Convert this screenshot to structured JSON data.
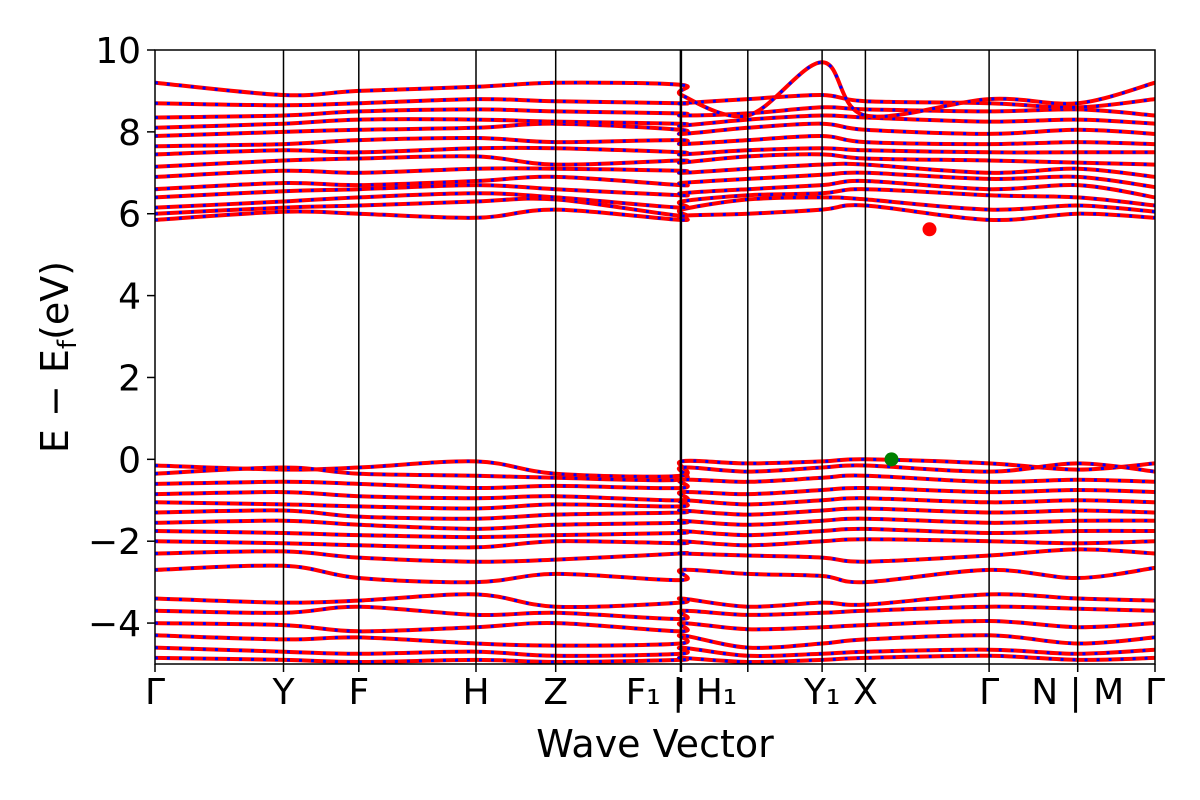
{
  "chart_data": {
    "type": "line",
    "title": "",
    "xlabel": "Wave Vector",
    "ylabel_main": "E − E",
    "ylabel_sub": "f",
    "ylabel_unit": "(eV)",
    "ylim": [
      -5,
      10
    ],
    "y_ticks": [
      {
        "value": -4,
        "label": "−4"
      },
      {
        "value": -2,
        "label": "−2"
      },
      {
        "value": 0,
        "label": "0"
      },
      {
        "value": 2,
        "label": "2"
      },
      {
        "value": 4,
        "label": "4"
      },
      {
        "value": 6,
        "label": "6"
      },
      {
        "value": 8,
        "label": "8"
      },
      {
        "value": 10,
        "label": "10"
      }
    ],
    "x_range": [
      0,
      1
    ],
    "kpoints": [
      {
        "x": 0.0,
        "label": "Γ"
      },
      {
        "x": 0.1285,
        "label": "Y"
      },
      {
        "x": 0.2038,
        "label": "F"
      },
      {
        "x": 0.321,
        "label": "H"
      },
      {
        "x": 0.4007,
        "label": "Z"
      },
      {
        "x": 0.5254,
        "label": "I"
      },
      {
        "x": 0.5264,
        "label": "F₁ | H₁"
      },
      {
        "x": 0.5928,
        "label": ""
      },
      {
        "x": 0.6671,
        "label": "Y₁"
      },
      {
        "x": 0.7104,
        "label": "X"
      },
      {
        "x": 0.8341,
        "label": "Γ"
      },
      {
        "x": 0.9227,
        "label": "N | M"
      },
      {
        "x": 1.0,
        "label": "Γ"
      }
    ],
    "series": [
      {
        "color": "#ff0000",
        "style": "solid",
        "width": 4
      },
      {
        "color": "#0000ff",
        "style": "dotted",
        "width": 3
      }
    ],
    "conduction_bands": [
      [
        5.85,
        6.05,
        6.0,
        5.9,
        6.1,
        5.85,
        5.95,
        6.0,
        6.1,
        6.2,
        5.85,
        6.0,
        5.9
      ],
      [
        6.0,
        6.15,
        6.2,
        6.3,
        6.35,
        5.95,
        6.1,
        6.35,
        6.4,
        6.35,
        6.1,
        6.2,
        6.05
      ],
      [
        6.15,
        6.3,
        6.4,
        6.5,
        6.4,
        6.15,
        6.3,
        6.45,
        6.5,
        6.6,
        6.45,
        6.4,
        6.2
      ],
      [
        6.4,
        6.55,
        6.6,
        6.7,
        6.6,
        6.45,
        6.5,
        6.6,
        6.7,
        6.8,
        6.6,
        6.7,
        6.4
      ],
      [
        6.6,
        6.75,
        6.7,
        6.8,
        6.9,
        6.7,
        6.75,
        6.85,
        6.95,
        7.0,
        6.85,
        6.9,
        6.65
      ],
      [
        6.9,
        7.05,
        7.0,
        7.1,
        7.1,
        7.05,
        7.0,
        7.1,
        7.2,
        7.2,
        7.0,
        7.1,
        6.9
      ],
      [
        7.15,
        7.3,
        7.35,
        7.4,
        7.2,
        7.3,
        7.25,
        7.4,
        7.45,
        7.35,
        7.3,
        7.25,
        7.2
      ],
      [
        7.45,
        7.55,
        7.5,
        7.6,
        7.6,
        7.5,
        7.45,
        7.55,
        7.6,
        7.55,
        7.5,
        7.5,
        7.5
      ],
      [
        7.65,
        7.7,
        7.8,
        7.85,
        7.75,
        7.8,
        7.7,
        7.8,
        7.9,
        7.75,
        7.7,
        7.75,
        7.7
      ],
      [
        7.9,
        8.0,
        8.05,
        8.1,
        8.2,
        8.05,
        7.95,
        8.1,
        8.2,
        8.05,
        7.95,
        8.05,
        7.95
      ],
      [
        8.1,
        8.2,
        8.3,
        8.3,
        8.25,
        8.2,
        8.15,
        8.3,
        8.4,
        8.35,
        8.25,
        8.3,
        8.2
      ],
      [
        8.35,
        8.4,
        8.5,
        8.55,
        8.5,
        8.45,
        8.4,
        8.45,
        8.6,
        8.55,
        8.5,
        8.55,
        8.4
      ],
      [
        8.7,
        8.65,
        8.7,
        8.8,
        8.75,
        8.7,
        8.7,
        8.8,
        8.9,
        8.75,
        8.7,
        8.6,
        8.8
      ],
      [
        9.2,
        8.9,
        9.0,
        9.1,
        9.2,
        9.15,
        8.9,
        8.4,
        9.7,
        8.4,
        8.8,
        8.7,
        9.2
      ]
    ],
    "valence_bands": [
      [
        -0.15,
        -0.25,
        -0.2,
        -0.05,
        -0.35,
        -0.4,
        -0.05,
        -0.1,
        -0.05,
        0.0,
        -0.1,
        -0.25,
        -0.1
      ],
      [
        -0.35,
        -0.2,
        -0.35,
        -0.4,
        -0.45,
        -0.5,
        -0.2,
        -0.3,
        -0.2,
        -0.15,
        -0.3,
        -0.1,
        -0.3
      ],
      [
        -0.6,
        -0.55,
        -0.6,
        -0.7,
        -0.65,
        -0.7,
        -0.5,
        -0.55,
        -0.45,
        -0.4,
        -0.55,
        -0.5,
        -0.55
      ],
      [
        -0.85,
        -0.8,
        -0.9,
        -0.95,
        -0.9,
        -1.0,
        -0.8,
        -0.85,
        -0.75,
        -0.7,
        -0.8,
        -0.75,
        -0.8
      ],
      [
        -1.05,
        -1.1,
        -1.15,
        -1.2,
        -1.1,
        -1.15,
        -1.0,
        -1.1,
        -1.0,
        -0.95,
        -1.05,
        -1.0,
        -1.05
      ],
      [
        -1.3,
        -1.25,
        -1.4,
        -1.45,
        -1.35,
        -1.3,
        -1.25,
        -1.35,
        -1.25,
        -1.2,
        -1.3,
        -1.25,
        -1.3
      ],
      [
        -1.55,
        -1.5,
        -1.6,
        -1.7,
        -1.6,
        -1.55,
        -1.5,
        -1.6,
        -1.5,
        -1.45,
        -1.55,
        -1.5,
        -1.5
      ],
      [
        -1.75,
        -1.8,
        -1.85,
        -1.9,
        -1.85,
        -1.8,
        -1.75,
        -1.85,
        -1.75,
        -1.7,
        -1.8,
        -1.75,
        -1.75
      ],
      [
        -2.0,
        -2.05,
        -2.1,
        -2.15,
        -2.0,
        -2.05,
        -2.0,
        -2.1,
        -2.0,
        -1.95,
        -2.0,
        -2.05,
        -2.0
      ],
      [
        -2.3,
        -2.25,
        -2.4,
        -2.5,
        -2.45,
        -2.3,
        -2.3,
        -2.35,
        -2.4,
        -2.5,
        -2.35,
        -2.2,
        -2.3
      ],
      [
        -2.7,
        -2.6,
        -2.9,
        -3.0,
        -2.8,
        -2.95,
        -2.7,
        -2.8,
        -2.85,
        -3.0,
        -2.7,
        -2.9,
        -2.65
      ],
      [
        -3.4,
        -3.5,
        -3.45,
        -3.3,
        -3.6,
        -3.5,
        -3.4,
        -3.6,
        -3.5,
        -3.55,
        -3.3,
        -3.4,
        -3.45
      ],
      [
        -3.7,
        -3.75,
        -3.6,
        -3.8,
        -3.75,
        -3.9,
        -3.7,
        -3.8,
        -3.75,
        -3.7,
        -3.6,
        -3.65,
        -3.7
      ],
      [
        -4.0,
        -4.05,
        -4.2,
        -4.1,
        -4.0,
        -4.2,
        -4.0,
        -4.15,
        -4.1,
        -4.05,
        -3.95,
        -4.1,
        -4.0
      ],
      [
        -4.3,
        -4.4,
        -4.35,
        -4.5,
        -4.55,
        -4.5,
        -4.3,
        -4.6,
        -4.5,
        -4.4,
        -4.3,
        -4.5,
        -4.35
      ],
      [
        -4.6,
        -4.7,
        -4.75,
        -4.7,
        -4.8,
        -4.75,
        -4.6,
        -4.8,
        -4.75,
        -4.7,
        -4.65,
        -4.75,
        -4.65
      ],
      [
        -4.85,
        -4.9,
        -4.95,
        -4.9,
        -4.95,
        -4.9,
        -4.85,
        -4.95,
        -4.9,
        -4.85,
        -4.8,
        -4.9,
        -4.85
      ]
    ],
    "markers": [
      {
        "kind": "cbm",
        "x": 0.7745,
        "y": 5.62,
        "color": "#ff0000"
      },
      {
        "kind": "vbm",
        "x": 0.7365,
        "y": 0.0,
        "color": "#008000"
      }
    ]
  }
}
